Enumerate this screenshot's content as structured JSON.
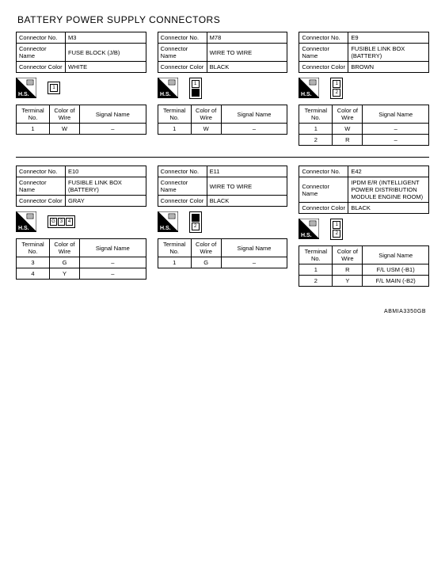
{
  "title": "BATTERY POWER SUPPLY CONNECTORS",
  "footer_code": "ABMIA3350GB",
  "labels": {
    "connector_no": "Connector No.",
    "connector_name": "Connector Name",
    "connector_color": "Connector Color",
    "terminal_no": "Terminal No.",
    "color_of_wire": "Color of Wire",
    "signal_name": "Signal Name",
    "hs": "H.S."
  },
  "row1": [
    {
      "no": "M3",
      "name": "FUSE BLOCK (J/B)",
      "color": "WHITE",
      "dia": {
        "orient": "horiz",
        "pins": [
          "1"
        ]
      },
      "terms": [
        {
          "t": "1",
          "c": "W",
          "s": "–"
        }
      ]
    },
    {
      "no": "M78",
      "name": "WIRE TO WIRE",
      "color": "BLACK",
      "dia": {
        "orient": "vert",
        "pins": [
          "1",
          "2"
        ],
        "filled": [
          1
        ]
      },
      "terms": [
        {
          "t": "1",
          "c": "W",
          "s": "–"
        }
      ]
    },
    {
      "no": "E9",
      "name": "FUSIBLE LINK BOX (BATTERY)",
      "color": "BROWN",
      "dia": {
        "orient": "vert",
        "pins": [
          "1",
          "2"
        ]
      },
      "terms": [
        {
          "t": "1",
          "c": "W",
          "s": "–"
        },
        {
          "t": "2",
          "c": "R",
          "s": "–"
        }
      ]
    }
  ],
  "row2": [
    {
      "no": "E10",
      "name": "FUSIBLE LINK BOX (BATTERY)",
      "color": "GRAY",
      "dia": {
        "orient": "horiz4",
        "pins": [
          "G",
          "3",
          "4"
        ]
      },
      "terms": [
        {
          "t": "3",
          "c": "G",
          "s": "–"
        },
        {
          "t": "4",
          "c": "Y",
          "s": "–"
        }
      ]
    },
    {
      "no": "E11",
      "name": "WIRE TO WIRE",
      "color": "BLACK",
      "dia": {
        "orient": "vert",
        "pins": [
          "1",
          "2"
        ],
        "filled": [
          0
        ]
      },
      "terms": [
        {
          "t": "1",
          "c": "G",
          "s": "–"
        }
      ]
    },
    {
      "no": "E42",
      "name": "IPDM E/R (INTELLIGENT POWER DISTRIBUTION MODULE ENGINE ROOM)",
      "color": "BLACK",
      "dia": {
        "orient": "vert",
        "pins": [
          "1",
          "2"
        ]
      },
      "terms": [
        {
          "t": "1",
          "c": "R",
          "s": "F/L USM (-B1)"
        },
        {
          "t": "2",
          "c": "Y",
          "s": "F/L MAIN (-B2)"
        }
      ]
    }
  ]
}
